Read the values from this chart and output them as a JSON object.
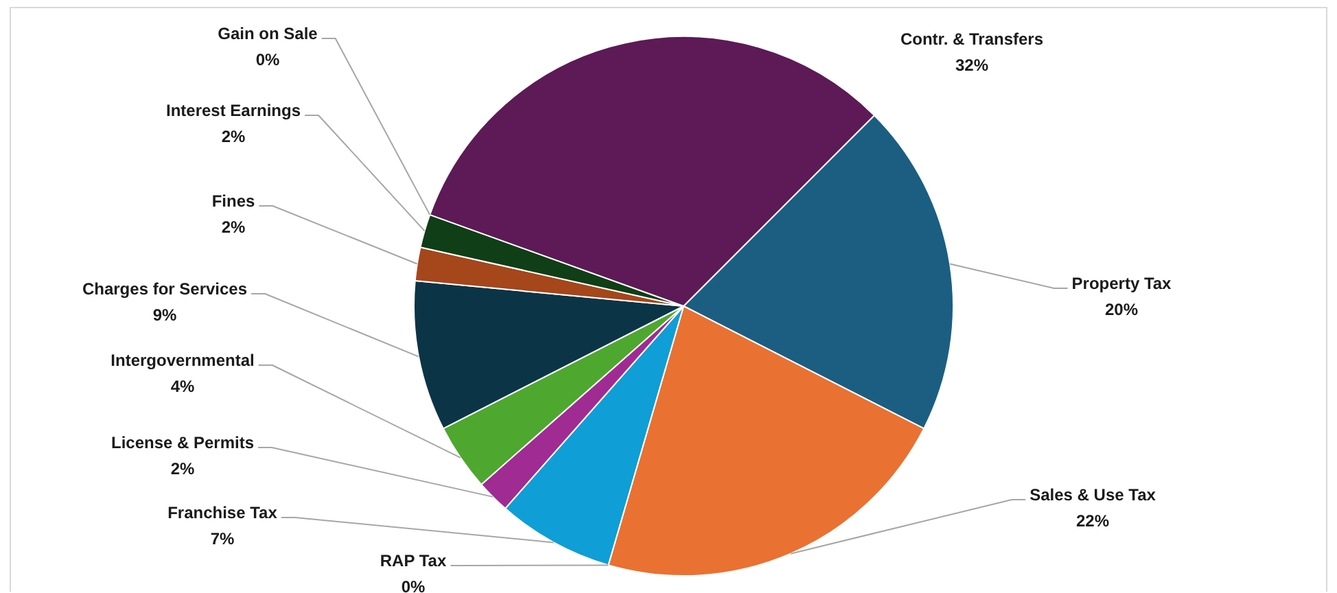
{
  "chart_data": {
    "type": "pie",
    "categories": [
      "Property Tax",
      "Sales & Use Tax",
      "RAP Tax",
      "Franchise Tax",
      "License & Permits",
      "Intergovernmental",
      "Charges for Services",
      "Fines",
      "Interest Earnings",
      "Gain on Sale",
      "Contr. & Transfers"
    ],
    "values": [
      20,
      22,
      0,
      7,
      2,
      4,
      9,
      2,
      2,
      0,
      32
    ],
    "colors": [
      "#1b5e81",
      "#e97132",
      "#196b24",
      "#0f9ed5",
      "#a02b93",
      "#4ea72e",
      "#0c3447",
      "#a5461b",
      "#0f3e17",
      "#074f6a",
      "#5d1a56"
    ],
    "value_labels": [
      "20%",
      "22%",
      "0%",
      "7%",
      "2%",
      "4%",
      "9%",
      "2%",
      "2%",
      "0%",
      "32%"
    ]
  }
}
